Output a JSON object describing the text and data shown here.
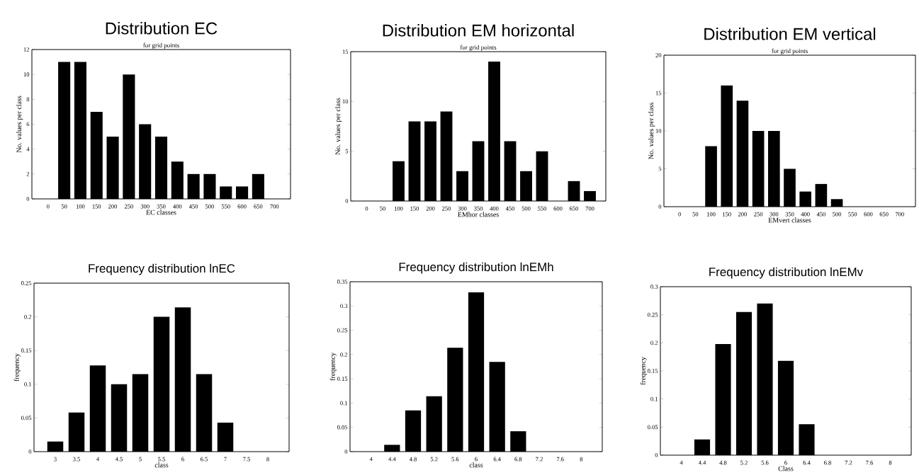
{
  "chart_data": [
    {
      "type": "bar",
      "title": "Distribution EC",
      "subtitle": "for grid points",
      "xlabel": "EC classes",
      "ylabel": "No. values per class",
      "categories": [
        "0",
        "50",
        "100",
        "150",
        "200",
        "250",
        "300",
        "350",
        "400",
        "450",
        "500",
        "550",
        "600",
        "650",
        "700"
      ],
      "values": [
        0,
        11,
        11,
        7,
        5,
        10,
        6,
        5,
        3,
        2,
        2,
        1,
        1,
        2,
        0
      ],
      "color": "#000000",
      "ylim": [
        0,
        12
      ],
      "yticks": [
        0,
        2,
        4,
        6,
        8,
        10,
        12
      ]
    },
    {
      "type": "bar",
      "title": "Distribution EM horizontal",
      "subtitle": "for grid points",
      "xlabel": "EMhor classes",
      "ylabel": "No. values per class",
      "categories": [
        "0",
        "50",
        "100",
        "150",
        "200",
        "250",
        "300",
        "350",
        "400",
        "450",
        "500",
        "550",
        "600",
        "650",
        "700"
      ],
      "values": [
        0,
        0,
        4,
        8,
        8,
        9,
        3,
        6,
        14,
        6,
        3,
        5,
        0,
        2,
        1
      ],
      "color": "#000000",
      "ylim": [
        0,
        15
      ],
      "yticks": [
        0,
        5,
        10,
        15
      ]
    },
    {
      "type": "bar",
      "title": "Distribution EM vertical",
      "subtitle": "for grid points",
      "xlabel": "EMvert classes",
      "ylabel": "No. values per class",
      "categories": [
        "0",
        "50",
        "100",
        "150",
        "200",
        "250",
        "300",
        "350",
        "400",
        "450",
        "500",
        "550",
        "600",
        "650",
        "700"
      ],
      "values": [
        0,
        0,
        8,
        16,
        14,
        10,
        10,
        5,
        2,
        3,
        1,
        0,
        0,
        0,
        0
      ],
      "color": "#000000",
      "ylim": [
        0,
        20
      ],
      "yticks": [
        0,
        5,
        10,
        15,
        20
      ]
    },
    {
      "type": "bar",
      "title": "Frequency distribution lnEC",
      "xlabel": "class",
      "ylabel": "frequency",
      "categories": [
        "3",
        "3.5",
        "4",
        "4.5",
        "5",
        "5.5",
        "6",
        "6.5",
        "7",
        "7.5",
        "8"
      ],
      "values": [
        0.015,
        0.058,
        0.128,
        0.1,
        0.115,
        0.2,
        0.214,
        0.115,
        0.043,
        0,
        0
      ],
      "color": "#000000",
      "ylim": [
        0,
        0.25
      ],
      "yticks": [
        0,
        0.05,
        0.1,
        0.15,
        0.2,
        0.25
      ]
    },
    {
      "type": "bar",
      "title": "Frequency distribution lnEMh",
      "xlabel": "class",
      "ylabel": "frequency",
      "categories": [
        "4",
        "4.4",
        "4.8",
        "5.2",
        "5.6",
        "6",
        "6.4",
        "6.8",
        "7.2",
        "7.6",
        "8"
      ],
      "values": [
        0,
        0.014,
        0.085,
        0.114,
        0.214,
        0.328,
        0.185,
        0.042,
        0,
        0,
        0
      ],
      "color": "#000000",
      "ylim": [
        0,
        0.35
      ],
      "yticks": [
        0,
        0.05,
        0.1,
        0.15,
        0.2,
        0.25,
        0.3,
        0.35
      ]
    },
    {
      "type": "bar",
      "title": "Frequency distribution lnEMv",
      "xlabel": "Class",
      "ylabel": "frequency",
      "categories": [
        "4",
        "4.4",
        "4.8",
        "5.2",
        "5.6",
        "6",
        "6.4",
        "6.8",
        "7.2",
        "7.6",
        "8"
      ],
      "values": [
        0,
        0.028,
        0.198,
        0.255,
        0.27,
        0.168,
        0.055,
        0,
        0,
        0,
        0
      ],
      "color": "#000000",
      "ylim": [
        0,
        0.3
      ],
      "yticks": [
        0,
        0.05,
        0.1,
        0.15,
        0.2,
        0.25,
        0.3
      ]
    }
  ]
}
